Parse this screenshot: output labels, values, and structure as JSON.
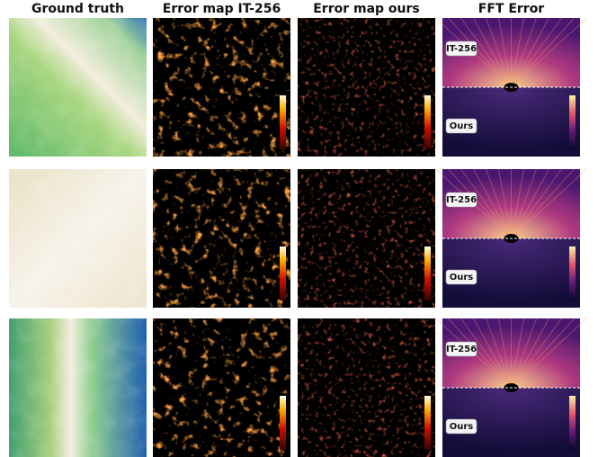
{
  "columns": [
    "Ground truth",
    "Error map IT-256",
    "Error map ours",
    "FFT Error"
  ],
  "rows": [
    {
      "fft_top": "IT-256",
      "fft_bottom": "Ours"
    },
    {
      "fft_top": "IT-256",
      "fft_bottom": "Ours"
    },
    {
      "fft_top": "IT-256",
      "fft_bottom": "Ours"
    }
  ]
}
